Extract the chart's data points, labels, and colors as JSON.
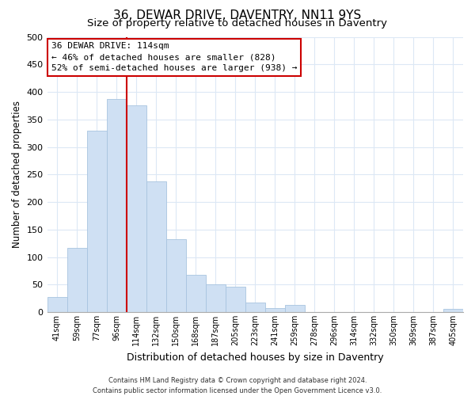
{
  "title": "36, DEWAR DRIVE, DAVENTRY, NN11 9YS",
  "subtitle": "Size of property relative to detached houses in Daventry",
  "xlabel": "Distribution of detached houses by size in Daventry",
  "ylabel": "Number of detached properties",
  "bar_labels": [
    "41sqm",
    "59sqm",
    "77sqm",
    "96sqm",
    "114sqm",
    "132sqm",
    "150sqm",
    "168sqm",
    "187sqm",
    "205sqm",
    "223sqm",
    "241sqm",
    "259sqm",
    "278sqm",
    "296sqm",
    "314sqm",
    "332sqm",
    "350sqm",
    "369sqm",
    "387sqm",
    "405sqm"
  ],
  "bar_values": [
    28,
    116,
    330,
    387,
    375,
    237,
    133,
    68,
    50,
    46,
    18,
    7,
    13,
    0,
    0,
    0,
    0,
    0,
    0,
    0,
    6
  ],
  "bar_color": "#cfe0f3",
  "bar_edge_color": "#a8c4e0",
  "vline_x_index": 4,
  "vline_color": "#cc0000",
  "ylim": [
    0,
    500
  ],
  "yticks": [
    0,
    50,
    100,
    150,
    200,
    250,
    300,
    350,
    400,
    450,
    500
  ],
  "annotation_title": "36 DEWAR DRIVE: 114sqm",
  "annotation_line1": "← 46% of detached houses are smaller (828)",
  "annotation_line2": "52% of semi-detached houses are larger (938) →",
  "annotation_box_color": "white",
  "annotation_box_edge": "#cc0000",
  "footer_line1": "Contains HM Land Registry data © Crown copyright and database right 2024.",
  "footer_line2": "Contains public sector information licensed under the Open Government Licence v3.0.",
  "grid_color": "#dce8f5",
  "title_fontsize": 11,
  "subtitle_fontsize": 9.5,
  "xlabel_fontsize": 9,
  "ylabel_fontsize": 8.5
}
